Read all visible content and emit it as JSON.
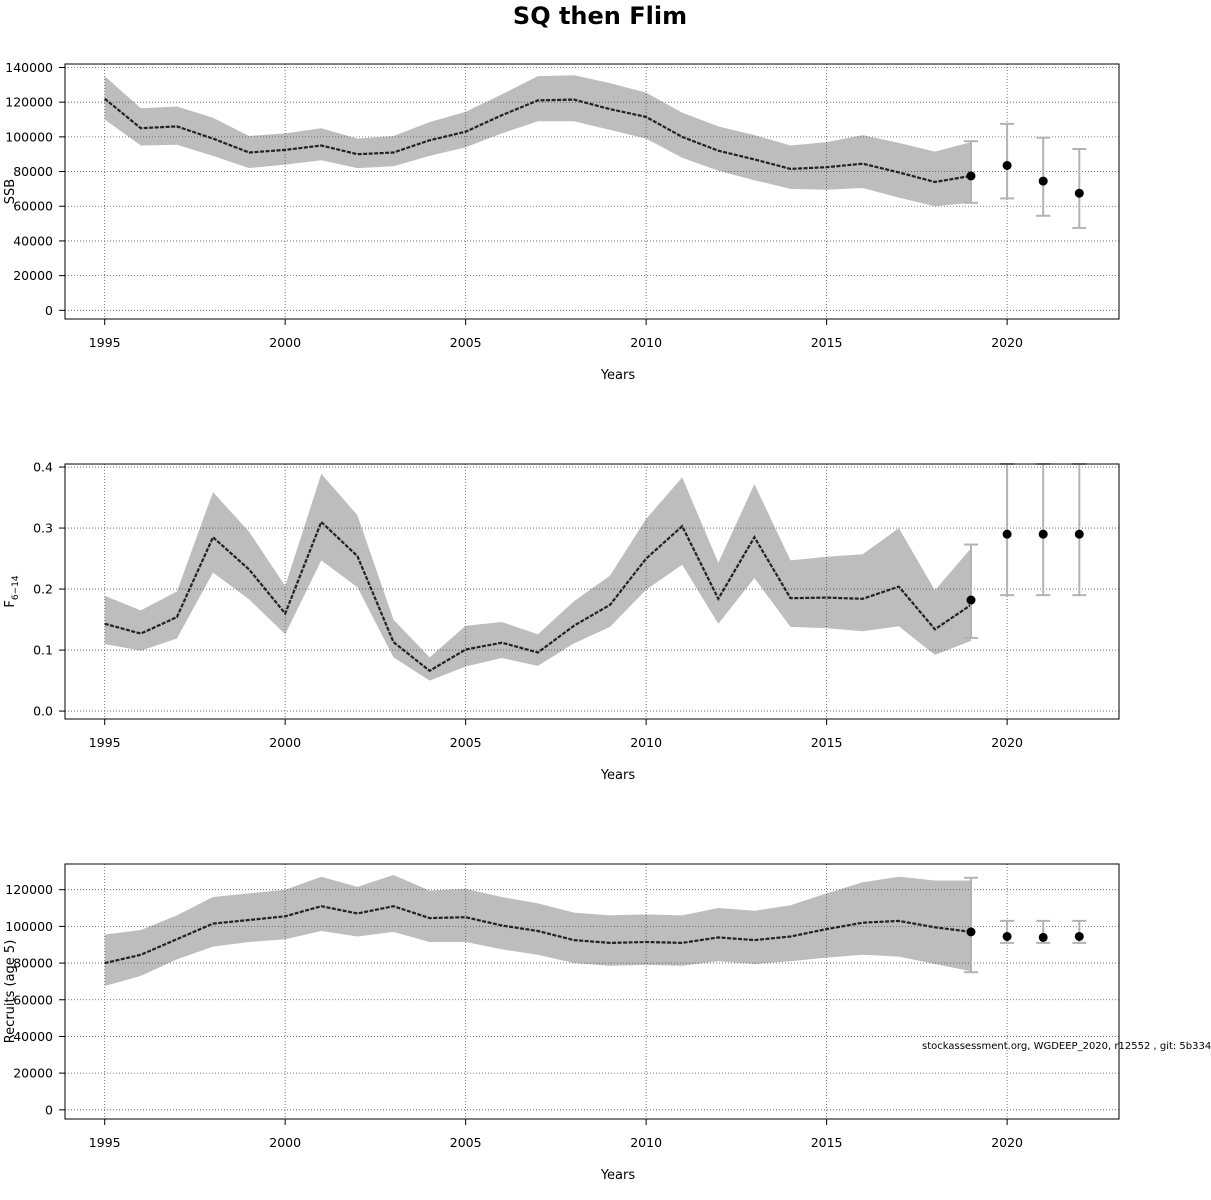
{
  "title": "SQ then Flim",
  "footnote": "stockassessment.org, WGDEEP_2020, r12552 , git: 5b334",
  "colors": {
    "band": "#bdbdbd",
    "line": "#222222",
    "point": "#000000",
    "errorbar": "#b3b3b3",
    "grid": "#555555"
  },
  "chart_data": [
    {
      "type": "line",
      "name": "ssb",
      "ylabel": "SSB",
      "xlabel": "Years",
      "xlim": [
        1993.9,
        2023.1
      ],
      "ylim": [
        -5000,
        142000
      ],
      "xticks": [
        1995,
        2000,
        2005,
        2010,
        2015,
        2020
      ],
      "yticks": [
        0,
        20000,
        40000,
        60000,
        80000,
        100000,
        120000,
        140000
      ],
      "ytick_labels": [
        "0",
        "20000",
        "40000",
        "60000",
        "80000",
        "100000",
        "120000",
        "140000"
      ],
      "x": [
        1995,
        1996,
        1997,
        1998,
        1999,
        2000,
        2001,
        2002,
        2003,
        2004,
        2005,
        2006,
        2007,
        2008,
        2009,
        2010,
        2011,
        2012,
        2013,
        2014,
        2015,
        2016,
        2017,
        2018,
        2019
      ],
      "estimate": [
        122000,
        105000,
        106000,
        99000,
        91000,
        92500,
        95000,
        90000,
        91000,
        98000,
        103000,
        112500,
        121000,
        121500,
        116000,
        111500,
        100000,
        92000,
        87000,
        81500,
        82500,
        84500,
        79500,
        74000,
        77500
      ],
      "lower": [
        110000,
        95000,
        95500,
        89000,
        82000,
        84000,
        86500,
        82000,
        83000,
        89000,
        94000,
        102000,
        109000,
        109000,
        104000,
        99000,
        88000,
        80500,
        75000,
        70000,
        69500,
        70500,
        65000,
        60000,
        62000
      ],
      "upper": [
        135000,
        116500,
        117500,
        111000,
        100500,
        102000,
        105000,
        99000,
        100500,
        108500,
        114500,
        124500,
        135000,
        135500,
        131000,
        125500,
        114000,
        106000,
        101000,
        95000,
        97000,
        101000,
        96500,
        91500,
        97000
      ],
      "forecast": [
        {
          "year": 2019,
          "median": 77500,
          "low": 62000,
          "high": 97500
        },
        {
          "year": 2020,
          "median": 83500,
          "low": 64500,
          "high": 107500
        },
        {
          "year": 2021,
          "median": 74500,
          "low": 54500,
          "high": 99500
        },
        {
          "year": 2022,
          "median": 67500,
          "low": 47500,
          "high": 93000
        }
      ]
    },
    {
      "type": "line",
      "name": "fbar",
      "ylabel": "F",
      "ylabel_sub": "6−14",
      "xlabel": "Years",
      "xlim": [
        1993.9,
        2023.1
      ],
      "ylim": [
        -0.013,
        0.405
      ],
      "xticks": [
        1995,
        2000,
        2005,
        2010,
        2015,
        2020
      ],
      "yticks": [
        0.0,
        0.1,
        0.2,
        0.3,
        0.4
      ],
      "ytick_labels": [
        "0.0",
        "0.1",
        "0.2",
        "0.3",
        "0.4"
      ],
      "x": [
        1995,
        1996,
        1997,
        1998,
        1999,
        2000,
        2001,
        2002,
        2003,
        2004,
        2005,
        2006,
        2007,
        2008,
        2009,
        2010,
        2011,
        2012,
        2013,
        2014,
        2015,
        2016,
        2017,
        2018,
        2019
      ],
      "estimate": [
        0.143,
        0.127,
        0.154,
        0.285,
        0.232,
        0.16,
        0.31,
        0.254,
        0.113,
        0.066,
        0.101,
        0.112,
        0.096,
        0.14,
        0.174,
        0.25,
        0.303,
        0.184,
        0.285,
        0.185,
        0.186,
        0.184,
        0.204,
        0.134,
        0.174
      ],
      "lower": [
        0.11,
        0.099,
        0.119,
        0.227,
        0.183,
        0.126,
        0.247,
        0.203,
        0.088,
        0.05,
        0.073,
        0.087,
        0.074,
        0.111,
        0.138,
        0.199,
        0.24,
        0.143,
        0.218,
        0.138,
        0.136,
        0.131,
        0.139,
        0.092,
        0.115
      ],
      "upper": [
        0.189,
        0.165,
        0.196,
        0.359,
        0.294,
        0.205,
        0.389,
        0.321,
        0.15,
        0.088,
        0.14,
        0.146,
        0.126,
        0.18,
        0.222,
        0.315,
        0.383,
        0.243,
        0.372,
        0.247,
        0.253,
        0.257,
        0.3,
        0.198,
        0.267
      ],
      "forecast": [
        {
          "year": 2019,
          "median": 0.182,
          "low": 0.12,
          "high": 0.273
        },
        {
          "year": 2020,
          "median": 0.29,
          "low": 0.19,
          "high": 0.405
        },
        {
          "year": 2021,
          "median": 0.29,
          "low": 0.19,
          "high": 0.405
        },
        {
          "year": 2022,
          "median": 0.29,
          "low": 0.19,
          "high": 0.405
        }
      ]
    },
    {
      "type": "line",
      "name": "recruits",
      "ylabel": "Recruits (age 5)",
      "xlabel": "Years",
      "xlim": [
        1993.9,
        2023.1
      ],
      "ylim": [
        -5000,
        134000
      ],
      "xticks": [
        1995,
        2000,
        2005,
        2010,
        2015,
        2020
      ],
      "yticks": [
        0,
        20000,
        40000,
        60000,
        80000,
        100000,
        120000
      ],
      "ytick_labels": [
        "0",
        "20000",
        "40000",
        "60000",
        "80000",
        "100000",
        "120000"
      ],
      "x": [
        1995,
        1996,
        1997,
        1998,
        1999,
        2000,
        2001,
        2002,
        2003,
        2004,
        2005,
        2006,
        2007,
        2008,
        2009,
        2010,
        2011,
        2012,
        2013,
        2014,
        2015,
        2016,
        2017,
        2018,
        2019
      ],
      "estimate": [
        80000,
        84500,
        93000,
        101500,
        103500,
        105500,
        111000,
        107000,
        111000,
        104500,
        105000,
        100500,
        97500,
        92500,
        91000,
        91500,
        91000,
        94000,
        92500,
        94500,
        98500,
        102000,
        103000,
        99500,
        97000
      ],
      "lower": [
        67500,
        73000,
        82000,
        89000,
        91500,
        93000,
        97500,
        94500,
        97000,
        91500,
        91500,
        87500,
        84500,
        80000,
        78500,
        79000,
        78500,
        81000,
        79500,
        81000,
        83000,
        84500,
        83500,
        79500,
        75500
      ],
      "upper": [
        95500,
        98000,
        106000,
        116000,
        118000,
        120000,
        127000,
        121500,
        128000,
        119500,
        120500,
        116000,
        112500,
        107500,
        106000,
        106500,
        106000,
        110000,
        108500,
        111500,
        118000,
        124000,
        127000,
        125000,
        125000
      ],
      "forecast": [
        {
          "year": 2019,
          "median": 97000,
          "low": 75000,
          "high": 126500
        },
        {
          "year": 2020,
          "median": 94500,
          "low": 91000,
          "high": 103000
        },
        {
          "year": 2021,
          "median": 94000,
          "low": 91000,
          "high": 103000
        },
        {
          "year": 2022,
          "median": 94500,
          "low": 91000,
          "high": 103000
        }
      ]
    }
  ]
}
